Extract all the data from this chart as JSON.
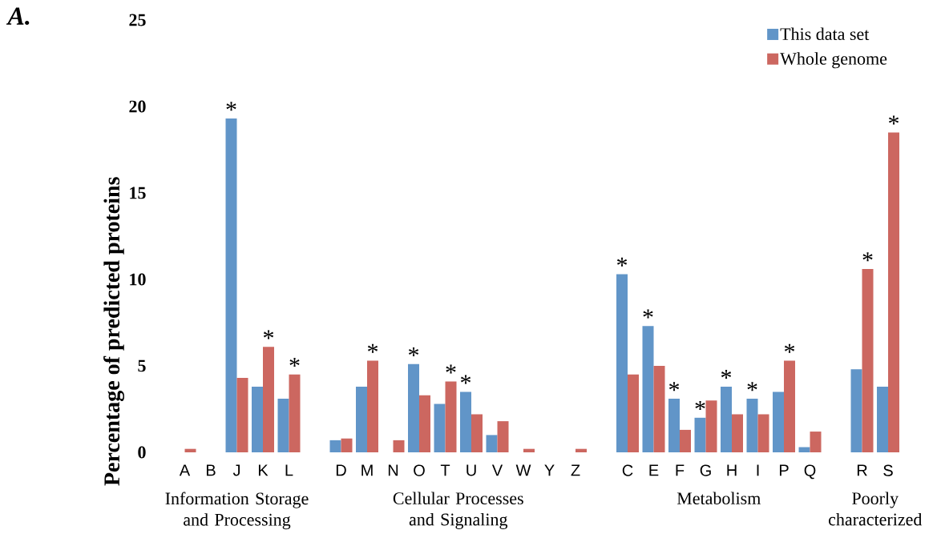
{
  "chart_data": {
    "type": "bar",
    "ylabel": "Percentage of predicted proteins",
    "categories": [
      "A",
      "B",
      "J",
      "K",
      "L",
      null,
      "D",
      "M",
      "N",
      "O",
      "T",
      "U",
      "V",
      "W",
      "Y",
      "Z",
      null,
      "C",
      "E",
      "F",
      "G",
      "H",
      "I",
      "P",
      "Q",
      null,
      "R",
      "S"
    ],
    "series": [
      {
        "name": "This data set",
        "color": "#6195c8",
        "values": [
          0,
          0,
          19.3,
          3.8,
          3.1,
          null,
          0.7,
          3.8,
          0,
          5.1,
          2.8,
          3.5,
          1.0,
          0,
          0,
          0,
          null,
          10.3,
          7.3,
          3.1,
          2.0,
          3.8,
          3.1,
          3.5,
          0.3,
          null,
          4.8,
          3.8
        ]
      },
      {
        "name": "Whole genome",
        "color": "#cc6760",
        "values": [
          0.2,
          0,
          4.3,
          6.1,
          4.5,
          null,
          0.8,
          5.3,
          0.7,
          3.3,
          4.1,
          2.2,
          1.8,
          0.2,
          0,
          0.2,
          null,
          4.5,
          5.0,
          1.3,
          3.0,
          2.2,
          2.2,
          5.3,
          1.2,
          null,
          10.6,
          18.5
        ]
      }
    ],
    "ylim": [
      0,
      25
    ],
    "yticks": [
      0,
      5,
      10,
      15,
      20,
      25
    ],
    "grid": false,
    "legend": "top right",
    "annotations": [
      "Information Storage and Processing",
      "Cellular Processes and Signaling",
      "Metabolism",
      "Poorly characterized",
      "A.",
      {
        "text": "*",
        "x": "J",
        "y": 19.3
      },
      {
        "text": "*",
        "x": "K",
        "y": 6.1
      },
      {
        "text": "*",
        "x": "L",
        "y": 4.5
      },
      {
        "text": "*",
        "x": "M",
        "y": 5.3
      },
      {
        "text": "*",
        "x": "O",
        "y": 5.1
      },
      {
        "text": "*",
        "x": "T",
        "y": 4.1
      },
      {
        "text": "*",
        "x": "U",
        "y": 3.5
      },
      {
        "text": "*",
        "x": "C",
        "y": 10.3
      },
      {
        "text": "*",
        "x": "E",
        "y": 7.3
      },
      {
        "text": "*",
        "x": "F",
        "y": 3.1
      },
      {
        "text": "*",
        "x": "G",
        "y": 2.0
      },
      {
        "text": "*",
        "x": "H",
        "y": 3.8
      },
      {
        "text": "*",
        "x": "I",
        "y": 3.1
      },
      {
        "text": "*",
        "x": "P",
        "y": 5.3
      },
      {
        "text": "*",
        "x": "R",
        "y": 10.6
      },
      {
        "text": "*",
        "x": "S",
        "y": 18.5
      }
    ]
  }
}
